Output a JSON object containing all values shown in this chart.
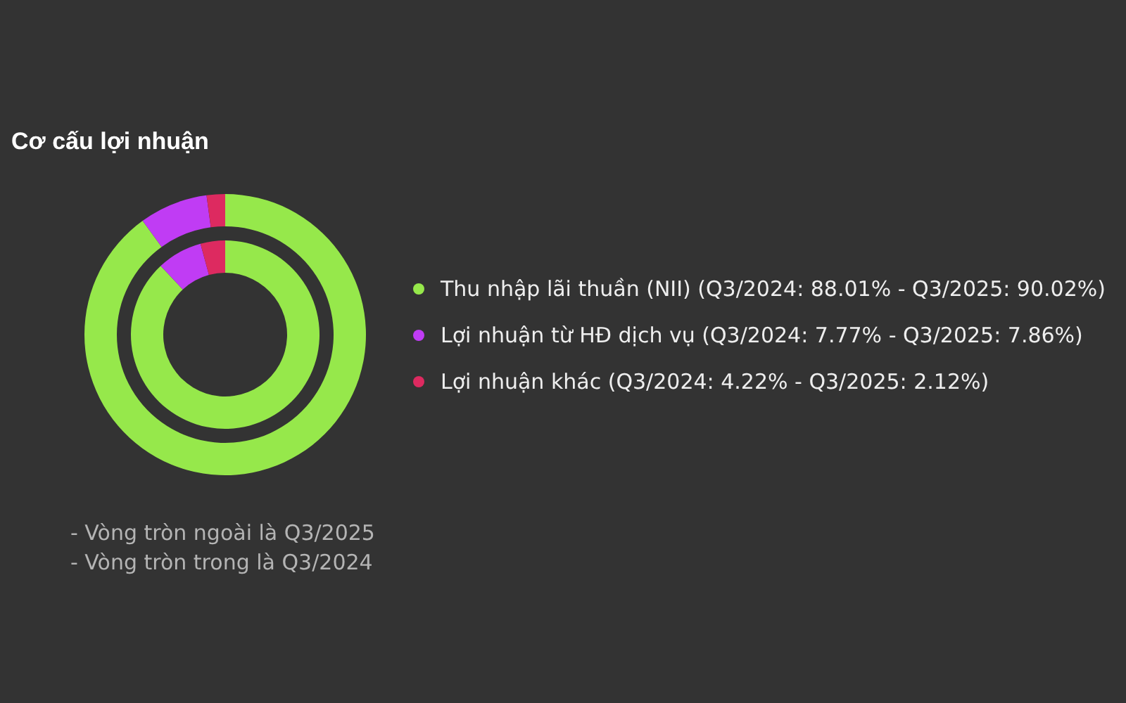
{
  "chart_data": {
    "type": "donut",
    "title": "Cơ cấu lợi nhuận",
    "categories": [
      "Thu nhập lãi thuần (NII) (Q3/2024: 88.01% - Q3/2025: 90.02%)",
      "Lợi nhuận từ HĐ dịch vụ (Q3/2024: 7.77% - Q3/2025: 7.86%)",
      "Lợi nhuận khác (Q3/2024: 4.22% - Q3/2025: 2.12%)"
    ],
    "colors": [
      "#96e84b",
      "#c03cf4",
      "#dd2a60"
    ],
    "series": [
      {
        "values": [
          88.01,
          7.77,
          4.22
        ]
      },
      {
        "values": [
          90.02,
          7.86,
          2.12
        ]
      }
    ],
    "legend": "right",
    "annotations": [
      "- Vòng tròn ngoài là Q3/2025",
      "- Vòng tròn trong là Q3/2024"
    ]
  }
}
